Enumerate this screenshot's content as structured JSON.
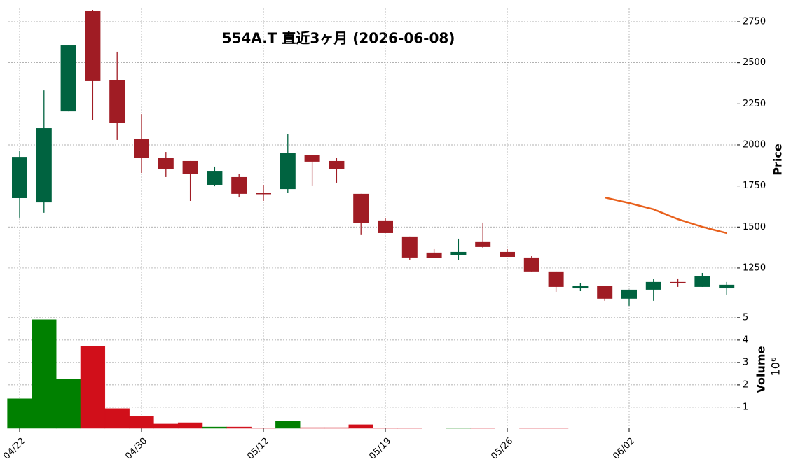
{
  "chart_data": {
    "type": "candlestick",
    "title": "554A.T  直近3ヶ月  (2026-06-08)",
    "categories": [
      "04/22",
      null,
      null,
      null,
      null,
      "04/30",
      null,
      null,
      null,
      null,
      "05/12",
      null,
      null,
      null,
      null,
      "05/19",
      null,
      null,
      null,
      null,
      "05/26",
      null,
      null,
      null,
      null,
      "06/02",
      null,
      null,
      null,
      null
    ],
    "open": [
      1676,
      1650,
      2204,
      2814,
      2396,
      2034,
      1923,
      1902,
      1757,
      1804,
      1706,
      1731,
      1936,
      1902,
      1702,
      1540,
      1442,
      1344,
      1327,
      1408,
      1348,
      1314,
      1229,
      1126,
      1139,
      1063,
      1118,
      1165,
      1135,
      1126
    ],
    "high": [
      1966,
      2332,
      2605,
      2822,
      2567,
      2187,
      1957,
      1902,
      1868,
      1821,
      1757,
      2068,
      1936,
      1923,
      1702,
      1553,
      1442,
      1365,
      1429,
      1527,
      1365,
      1322,
      1229,
      1160,
      1139,
      1118,
      1182,
      1186,
      1220,
      1165
    ],
    "low": [
      1557,
      1587,
      2204,
      2153,
      2030,
      1829,
      1804,
      1659,
      1748,
      1680,
      1659,
      1710,
      1753,
      1770,
      1455,
      1463,
      1301,
      1310,
      1297,
      1369,
      1318,
      1229,
      1105,
      1109,
      1050,
      1020,
      1050,
      1135,
      1135,
      1088
    ],
    "close": [
      1927,
      2102,
      2605,
      2388,
      2132,
      1919,
      1851,
      1821,
      1842,
      1702,
      1702,
      1949,
      1898,
      1851,
      1523,
      1463,
      1314,
      1310,
      1348,
      1378,
      1318,
      1229,
      1135,
      1143,
      1063,
      1118,
      1165,
      1156,
      1199,
      1148
    ],
    "up_color": "#006340",
    "down_color": "#a01c24",
    "moving_average": {
      "color": "#e8601c",
      "values": [
        null,
        null,
        null,
        null,
        null,
        null,
        null,
        null,
        null,
        null,
        null,
        null,
        null,
        null,
        null,
        null,
        null,
        null,
        null,
        null,
        null,
        null,
        null,
        null,
        1680,
        1646,
        1608,
        1548,
        1501,
        1463
      ]
    },
    "ylabel": "Price",
    "ylim": [
      994,
      2831
    ],
    "yticks": [
      1250,
      1500,
      1750,
      2000,
      2250,
      2500,
      2750
    ],
    "grid": true,
    "volume": {
      "values": [
        1.38,
        4.91,
        2.25,
        3.72,
        0.94,
        0.59,
        0.25,
        0.31,
        0.12,
        0.12,
        0.07,
        0.38,
        0.09,
        0.09,
        0.22,
        0.07,
        0.07,
        0.06,
        0.07,
        0.08,
        0.06,
        0.07,
        0.08,
        0.06,
        0.06,
        0.06,
        0.06,
        0.06,
        0.06,
        0.06
      ],
      "up_color": "#008000",
      "down_color": "#d10f1a",
      "ylabel": "Volume",
      "offset_label": "10⁶",
      "ylim": [
        0.06,
        5.34
      ],
      "yticks": [
        1,
        2,
        3,
        4,
        5
      ]
    }
  }
}
